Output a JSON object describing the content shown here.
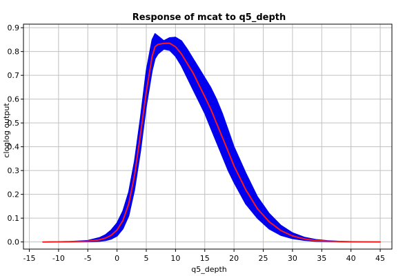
{
  "chart_data": {
    "type": "line",
    "title": "Response of mcat to q5_depth",
    "xlabel": "q5_depth",
    "ylabel": "cloglog output",
    "xlim": [
      -16,
      47
    ],
    "ylim": [
      -0.03,
      0.915
    ],
    "xticks": [
      -15,
      -10,
      -5,
      0,
      5,
      10,
      15,
      20,
      25,
      30,
      35,
      40,
      45
    ],
    "yticks": [
      0.0,
      0.1,
      0.2,
      0.3,
      0.4,
      0.5,
      0.6,
      0.7,
      0.8,
      0.9
    ],
    "grid": true,
    "colors": {
      "band": "#0000ee",
      "mean": "#ff1a1a"
    },
    "series": [
      {
        "role": "mean",
        "x": [
          -12.7,
          -8,
          -5,
          -3,
          -2,
          -1,
          0,
          1,
          2,
          3,
          4,
          5,
          6,
          6.5,
          7,
          8,
          9,
          10,
          11,
          12,
          13,
          14,
          15,
          16,
          17,
          18,
          19,
          20,
          22,
          24,
          26,
          28,
          30,
          32,
          34,
          36,
          38,
          40,
          42,
          45
        ],
        "values": [
          0.0,
          0.001,
          0.003,
          0.009,
          0.016,
          0.028,
          0.05,
          0.09,
          0.16,
          0.28,
          0.45,
          0.63,
          0.78,
          0.82,
          0.83,
          0.834,
          0.835,
          0.82,
          0.79,
          0.75,
          0.71,
          0.66,
          0.61,
          0.56,
          0.5,
          0.44,
          0.38,
          0.32,
          0.22,
          0.14,
          0.085,
          0.048,
          0.025,
          0.013,
          0.006,
          0.003,
          0.0015,
          0.0007,
          0.0003,
          0.0001
        ]
      },
      {
        "role": "band-upper",
        "x": [
          -12.7,
          -8,
          -5,
          -3,
          -2,
          -1,
          0,
          1,
          2,
          3,
          4,
          5,
          6,
          6.5,
          7,
          8,
          9,
          10,
          11,
          12,
          13,
          14,
          15,
          16,
          17,
          18,
          19,
          20,
          22,
          24,
          26,
          28,
          30,
          32,
          34,
          36,
          38,
          40,
          42,
          45
        ],
        "values": [
          0.0,
          0.002,
          0.006,
          0.018,
          0.03,
          0.05,
          0.08,
          0.13,
          0.21,
          0.34,
          0.52,
          0.72,
          0.85,
          0.875,
          0.865,
          0.845,
          0.858,
          0.86,
          0.845,
          0.81,
          0.77,
          0.73,
          0.69,
          0.65,
          0.6,
          0.54,
          0.47,
          0.4,
          0.29,
          0.19,
          0.12,
          0.07,
          0.038,
          0.02,
          0.01,
          0.005,
          0.0025,
          0.0012,
          0.0005,
          0.0002
        ]
      },
      {
        "role": "band-lower",
        "x": [
          -12.7,
          -8,
          -5,
          -3,
          -2,
          -1,
          0,
          1,
          2,
          3,
          4,
          5,
          6,
          6.5,
          7,
          8,
          9,
          10,
          11,
          12,
          13,
          14,
          15,
          16,
          17,
          18,
          19,
          20,
          22,
          24,
          26,
          28,
          30,
          32,
          34,
          36,
          38,
          40,
          42,
          45
        ],
        "values": [
          0.0,
          0.0005,
          0.001,
          0.003,
          0.006,
          0.012,
          0.025,
          0.055,
          0.11,
          0.22,
          0.38,
          0.57,
          0.72,
          0.77,
          0.79,
          0.81,
          0.805,
          0.78,
          0.74,
          0.69,
          0.64,
          0.59,
          0.54,
          0.48,
          0.42,
          0.36,
          0.3,
          0.25,
          0.16,
          0.1,
          0.055,
          0.028,
          0.014,
          0.007,
          0.003,
          0.0015,
          0.0007,
          0.0003,
          0.0001,
          0.0
        ]
      }
    ]
  }
}
